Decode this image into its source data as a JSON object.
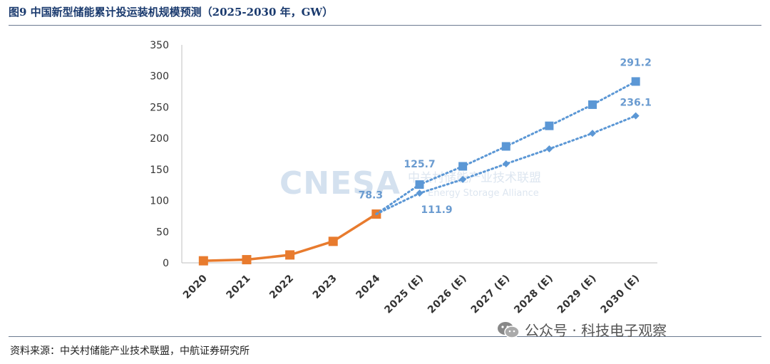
{
  "title": "图9  中国新型储能累计投运装机规模预测（2025-2030 年，GW）",
  "source": "资料来源：中关村储能产业技术联盟，中航证券研究所",
  "watermark": {
    "logo_text": "CNESA",
    "cn_text": "中关村储能产业技术联盟",
    "en_text": "Energy Storage Alliance",
    "brand_text": "公众号 · 科技电子观察",
    "brand_icon": "wechat-icon"
  },
  "chart_data": {
    "type": "line",
    "categories": [
      "2020",
      "2021",
      "2022",
      "2023",
      "2024",
      "2025 (E)",
      "2026 (E)",
      "2027 (E)",
      "2028 (E)",
      "2029 (E)",
      "2030 (E)"
    ],
    "ylim": [
      0,
      350
    ],
    "yticks": [
      0,
      50,
      100,
      150,
      200,
      250,
      300,
      350
    ],
    "grid": false,
    "legend": "none",
    "series": [
      {
        "key": "historical",
        "color": "#e87b2e",
        "style": "solid",
        "marker": "square",
        "values": [
          3.3,
          5.1,
          12.7,
          34.5,
          78.3,
          null,
          null,
          null,
          null,
          null,
          null
        ],
        "labels": {
          "4": "78.3"
        }
      },
      {
        "key": "forecast_high",
        "color": "#5b97d5",
        "style": "dotted",
        "marker": "square",
        "values": [
          null,
          null,
          null,
          null,
          78.3,
          125.7,
          155,
          187,
          220,
          254,
          291.2
        ],
        "labels": {
          "5": "125.7",
          "10": "291.2"
        }
      },
      {
        "key": "forecast_low",
        "color": "#5b97d5",
        "style": "dotted",
        "marker": "diamond",
        "values": [
          null,
          null,
          null,
          null,
          78.3,
          111.9,
          134,
          159,
          183,
          208,
          236.1
        ],
        "labels": {
          "5": "111.9",
          "10": "236.1"
        }
      }
    ]
  }
}
